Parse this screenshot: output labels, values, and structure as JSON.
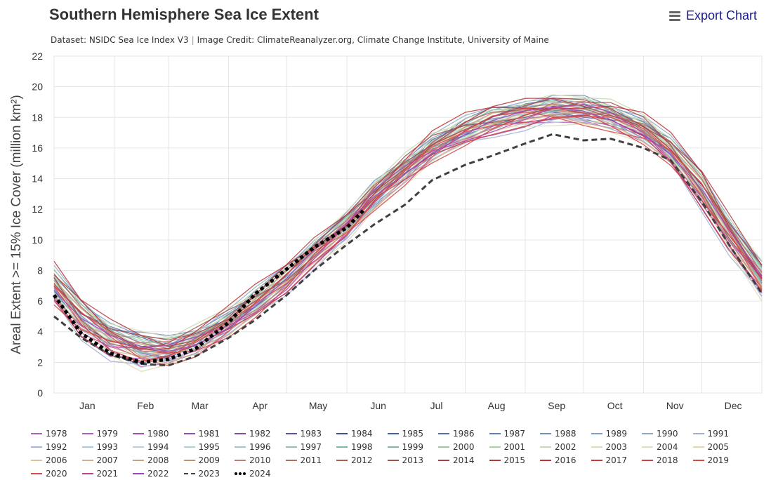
{
  "title": "Southern Hemisphere Sea Ice Extent",
  "export_label": "Export Chart",
  "credit": {
    "dataset": "Dataset: NSIDC Sea Ice Index V3",
    "separator": "|",
    "image_credit": "Image Credit: ClimateReanalyzer.org, Climate Change Institute, University of Maine"
  },
  "chart_data": {
    "type": "line",
    "ylabel": "Areal Extent >= 15% Ice Cover (million km²)",
    "ylim": [
      0,
      22
    ],
    "yticks": [
      0,
      2,
      4,
      6,
      8,
      10,
      12,
      14,
      16,
      18,
      20,
      22
    ],
    "xlim": [
      1,
      366
    ],
    "months": [
      {
        "label": "Jan",
        "day": 16
      },
      {
        "label": "Feb",
        "day": 46
      },
      {
        "label": "Mar",
        "day": 74
      },
      {
        "label": "Apr",
        "day": 105
      },
      {
        "label": "May",
        "day": 135
      },
      {
        "label": "Jun",
        "day": 166
      },
      {
        "label": "Jul",
        "day": 196
      },
      {
        "label": "Aug",
        "day": 227
      },
      {
        "label": "Sep",
        "day": 258
      },
      {
        "label": "Oct",
        "day": 288
      },
      {
        "label": "Nov",
        "day": 319
      },
      {
        "label": "Dec",
        "day": 349
      }
    ],
    "grid": true,
    "legend_position": "bottom",
    "climatology": {
      "x": [
        1,
        15,
        30,
        46,
        60,
        74,
        91,
        105,
        121,
        135,
        152,
        166,
        182,
        196,
        213,
        227,
        244,
        258,
        274,
        288,
        305,
        319,
        335,
        349,
        366
      ],
      "y": [
        7.0,
        4.9,
        3.6,
        2.9,
        2.8,
        3.4,
        4.6,
        5.9,
        7.5,
        9.2,
        11.0,
        12.9,
        14.6,
        16.0,
        17.1,
        17.8,
        18.3,
        18.6,
        18.5,
        18.1,
        17.2,
        15.8,
        13.3,
        10.5,
        7.5
      ]
    },
    "years": [
      "1978",
      "1979",
      "1980",
      "1981",
      "1982",
      "1983",
      "1984",
      "1985",
      "1986",
      "1987",
      "1988",
      "1989",
      "1990",
      "1991",
      "1992",
      "1993",
      "1994",
      "1995",
      "1996",
      "1997",
      "1998",
      "1999",
      "2000",
      "2001",
      "2002",
      "2003",
      "2004",
      "2005",
      "2006",
      "2007",
      "2008",
      "2009",
      "2010",
      "2011",
      "2012",
      "2013",
      "2014",
      "2015",
      "2016",
      "2017",
      "2018",
      "2019",
      "2020",
      "2021",
      "2022"
    ],
    "year_colors": [
      "#b060c0",
      "#b060c0",
      "#a050b8",
      "#9050b0",
      "#8050a8",
      "#6050a0",
      "#405090",
      "#4060a8",
      "#5070b0",
      "#6080b8",
      "#7090c0",
      "#80a0c8",
      "#90a8c8",
      "#a0b0d0",
      "#a0b8d8",
      "#b0c8e0",
      "#b8d0e0",
      "#b0d0d8",
      "#a0c8c8",
      "#90c0b8",
      "#80b8a8",
      "#80b8a0",
      "#a0c8a0",
      "#b0d0a8",
      "#c8d8b0",
      "#d8e0b8",
      "#e0e0b8",
      "#e0d8b0",
      "#d8c0a0",
      "#d0b090",
      "#c8a080",
      "#c09070",
      "#b88070",
      "#b07060",
      "#a86050",
      "#a05048",
      "#a84048",
      "#b03838",
      "#c03030",
      "#c83838",
      "#d04040",
      "#d84848",
      "#e04848",
      "#c040a0",
      "#a040c0"
    ],
    "series": [
      {
        "name": "2023",
        "style": "dashed",
        "color": "#404040",
        "x": [
          1,
          15,
          30,
          46,
          60,
          74,
          91,
          105,
          121,
          135,
          152,
          166,
          182,
          196,
          213,
          227,
          244,
          258,
          274,
          288,
          305,
          319,
          335,
          349,
          366
        ],
        "y": [
          5.0,
          3.6,
          2.5,
          1.9,
          1.8,
          2.4,
          3.6,
          4.8,
          6.4,
          8.0,
          9.7,
          11.0,
          12.3,
          13.9,
          14.9,
          15.5,
          16.3,
          16.9,
          16.5,
          16.6,
          16.0,
          15.2,
          12.5,
          9.7,
          6.5
        ]
      },
      {
        "name": "2024",
        "style": "dotted",
        "color": "#000000",
        "x": [
          1,
          15,
          30,
          46,
          60,
          74,
          91,
          105,
          121,
          135,
          152,
          161
        ],
        "y": [
          6.4,
          3.9,
          2.6,
          2.0,
          2.2,
          2.9,
          4.6,
          6.5,
          8.1,
          9.5,
          10.8,
          12.0
        ]
      }
    ]
  },
  "legend": [
    {
      "label": "1978",
      "color": "#b060c0",
      "style": "solid"
    },
    {
      "label": "1979",
      "color": "#b060c0",
      "style": "solid"
    },
    {
      "label": "1980",
      "color": "#a050b8",
      "style": "solid"
    },
    {
      "label": "1981",
      "color": "#9050b0",
      "style": "solid"
    },
    {
      "label": "1982",
      "color": "#8050a8",
      "style": "solid"
    },
    {
      "label": "1983",
      "color": "#6050a0",
      "style": "solid"
    },
    {
      "label": "1984",
      "color": "#405090",
      "style": "solid"
    },
    {
      "label": "1985",
      "color": "#4060a8",
      "style": "solid"
    },
    {
      "label": "1986",
      "color": "#5070b0",
      "style": "solid"
    },
    {
      "label": "1987",
      "color": "#6080b8",
      "style": "solid"
    },
    {
      "label": "1988",
      "color": "#7090c0",
      "style": "solid"
    },
    {
      "label": "1989",
      "color": "#80a0c8",
      "style": "solid"
    },
    {
      "label": "1990",
      "color": "#90a8c8",
      "style": "solid"
    },
    {
      "label": "1991",
      "color": "#a0b0d0",
      "style": "solid"
    },
    {
      "label": "1992",
      "color": "#a0b8d8",
      "style": "solid"
    },
    {
      "label": "1993",
      "color": "#b0c8e0",
      "style": "solid"
    },
    {
      "label": "1994",
      "color": "#b8d0e0",
      "style": "solid"
    },
    {
      "label": "1995",
      "color": "#b0d0d8",
      "style": "solid"
    },
    {
      "label": "1996",
      "color": "#a0c8c8",
      "style": "solid"
    },
    {
      "label": "1997",
      "color": "#90c0b8",
      "style": "solid"
    },
    {
      "label": "1998",
      "color": "#80b8a8",
      "style": "solid"
    },
    {
      "label": "1999",
      "color": "#80b8a0",
      "style": "solid"
    },
    {
      "label": "2000",
      "color": "#a0c8a0",
      "style": "solid"
    },
    {
      "label": "2001",
      "color": "#b0d0a8",
      "style": "solid"
    },
    {
      "label": "2002",
      "color": "#c8d8b0",
      "style": "solid"
    },
    {
      "label": "2003",
      "color": "#d8e0b8",
      "style": "solid"
    },
    {
      "label": "2004",
      "color": "#e0e0b8",
      "style": "solid"
    },
    {
      "label": "2005",
      "color": "#e0d8b0",
      "style": "solid"
    },
    {
      "label": "2006",
      "color": "#d8c0a0",
      "style": "solid"
    },
    {
      "label": "2007",
      "color": "#d0b090",
      "style": "solid"
    },
    {
      "label": "2008",
      "color": "#c8a080",
      "style": "solid"
    },
    {
      "label": "2009",
      "color": "#c09070",
      "style": "solid"
    },
    {
      "label": "2010",
      "color": "#b88070",
      "style": "solid"
    },
    {
      "label": "2011",
      "color": "#b07060",
      "style": "solid"
    },
    {
      "label": "2012",
      "color": "#a86050",
      "style": "solid"
    },
    {
      "label": "2013",
      "color": "#a05048",
      "style": "solid"
    },
    {
      "label": "2014",
      "color": "#a84048",
      "style": "solid"
    },
    {
      "label": "2015",
      "color": "#b03838",
      "style": "solid"
    },
    {
      "label": "2016",
      "color": "#c03030",
      "style": "solid"
    },
    {
      "label": "2017",
      "color": "#c83838",
      "style": "solid"
    },
    {
      "label": "2018",
      "color": "#d04040",
      "style": "solid"
    },
    {
      "label": "2019",
      "color": "#d84848",
      "style": "solid"
    },
    {
      "label": "2020",
      "color": "#e04848",
      "style": "solid"
    },
    {
      "label": "2021",
      "color": "#c040a0",
      "style": "solid"
    },
    {
      "label": "2022",
      "color": "#a040c0",
      "style": "solid"
    },
    {
      "label": "2023",
      "color": "#404040",
      "style": "dashed"
    },
    {
      "label": "2024",
      "color": "#000000",
      "style": "dotted"
    }
  ]
}
